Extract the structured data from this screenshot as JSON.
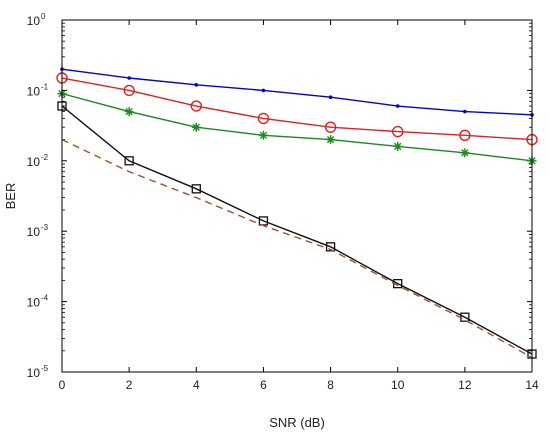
{
  "chart_data": {
    "type": "line",
    "title": "",
    "xlabel": "SNR (dB)",
    "ylabel": "BER",
    "xlim": [
      0,
      14
    ],
    "ylim": [
      1e-05,
      1
    ],
    "yscale": "log",
    "grid": false,
    "legend": "none",
    "x_ticks": [
      "0",
      "2",
      "4",
      "6",
      "8",
      "10",
      "12",
      "14"
    ],
    "y_ticks": [
      {
        "base": "10",
        "exp": "0",
        "value": 1
      },
      {
        "base": "10",
        "exp": "-1",
        "value": 0.1
      },
      {
        "base": "10",
        "exp": "-2",
        "value": 0.01
      },
      {
        "base": "10",
        "exp": "-3",
        "value": 0.001
      },
      {
        "base": "10",
        "exp": "-4",
        "value": 0.0001
      },
      {
        "base": "10",
        "exp": "-5",
        "value": 1e-05
      }
    ],
    "x": [
      0,
      2,
      4,
      6,
      8,
      10,
      12,
      14
    ],
    "series": [
      {
        "color": "#0000dd",
        "line": "solid",
        "marker": "dot",
        "values": [
          0.2,
          0.15,
          0.12,
          0.1,
          0.08,
          0.06,
          0.05,
          0.045
        ]
      },
      {
        "color": "#e02020",
        "line": "solid",
        "marker": "circle",
        "values": [
          0.15,
          0.1,
          0.06,
          0.04,
          0.03,
          0.026,
          0.023,
          0.02
        ]
      },
      {
        "color": "#1a8a1a",
        "line": "solid",
        "marker": "star",
        "values": [
          0.09,
          0.05,
          0.03,
          0.023,
          0.02,
          0.016,
          0.013,
          0.01
        ]
      },
      {
        "color": "#111111",
        "line": "solid",
        "marker": "square",
        "values": [
          0.06,
          0.01,
          0.004,
          0.0014,
          0.0006,
          0.00018,
          6e-05,
          1.8e-05
        ]
      },
      {
        "color": "#a0522d",
        "line": "dashed",
        "marker": "none",
        "values": [
          0.02,
          0.007,
          0.003,
          0.0012,
          0.00055,
          0.00017,
          5.5e-05,
          1.6e-05
        ]
      }
    ]
  }
}
